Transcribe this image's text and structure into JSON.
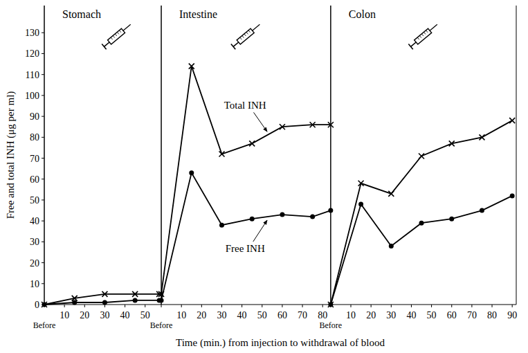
{
  "chart_data": [
    {
      "type": "line",
      "title": "Stomach",
      "ylabel": "Free and total INH (μg per ml)",
      "x": [
        0,
        15,
        30,
        45,
        57
      ],
      "xlim": [
        0,
        58
      ],
      "xticks": [
        {
          "value": 0,
          "label": "Before"
        },
        10,
        20,
        30,
        40,
        50
      ],
      "ylim": [
        0,
        143
      ],
      "yticks": [
        0,
        10,
        20,
        30,
        40,
        50,
        60,
        70,
        80,
        90,
        100,
        110,
        120,
        130
      ],
      "series": [
        {
          "color": "#000000",
          "marker": "x",
          "values": [
            0,
            3,
            5,
            5,
            5
          ]
        },
        {
          "color": "#000000",
          "marker": "circle",
          "values": [
            0,
            1,
            1,
            2,
            2
          ]
        }
      ]
    },
    {
      "type": "line",
      "title": "Intestine",
      "xlabel": "Time (min.) from injection to withdrawal of blood",
      "x": [
        0,
        15,
        30,
        45,
        60,
        75,
        84
      ],
      "xlim": [
        0,
        84
      ],
      "xticks": [
        {
          "value": 0,
          "label": "Before"
        },
        10,
        20,
        30,
        40,
        50,
        60,
        70,
        80
      ],
      "ylim": [
        0,
        143
      ],
      "yticks": [
        0,
        10,
        20,
        30,
        40,
        50,
        60,
        70,
        80,
        90,
        100,
        110,
        120,
        130
      ],
      "tick_labels": "x",
      "series": [
        {
          "name": "Total INH",
          "color": "#000000",
          "marker": "x",
          "values": [
            5,
            114,
            72,
            77,
            85,
            86,
            86
          ]
        },
        {
          "name": "Free INH",
          "color": "#000000",
          "marker": "circle",
          "values": [
            2,
            63,
            38,
            41,
            43,
            42,
            45
          ]
        }
      ]
    },
    {
      "type": "line",
      "title": "Colon",
      "x": [
        0,
        15,
        30,
        45,
        60,
        75,
        90
      ],
      "xlim": [
        0,
        92
      ],
      "xticks": [
        {
          "value": 0,
          "label": "Before"
        },
        10,
        20,
        30,
        40,
        50,
        60,
        70,
        80,
        90
      ],
      "ylim": [
        0,
        143
      ],
      "yticks": [
        0,
        10,
        20,
        30,
        40,
        50,
        60,
        70,
        80,
        90,
        100,
        110,
        120,
        130
      ],
      "tick_labels": "x",
      "series": [
        {
          "color": "#000000",
          "marker": "x",
          "values": [
            0,
            58,
            53,
            71,
            77,
            80,
            88
          ]
        },
        {
          "color": "#000000",
          "marker": "circle",
          "values": [
            0,
            48,
            28,
            39,
            41,
            45,
            52
          ]
        }
      ]
    }
  ]
}
